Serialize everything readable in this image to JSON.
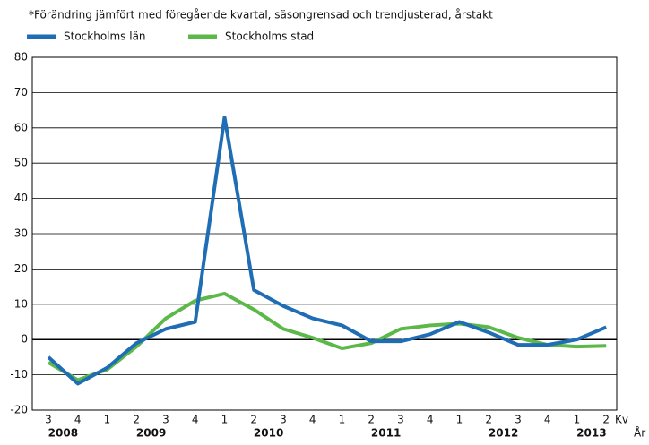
{
  "chart_data": {
    "type": "line",
    "subtitle": "*Förändring jämfört med föregående kvartal, säsongrensad och trendjusterad, årstakt",
    "categories": [
      "3",
      "4",
      "1",
      "2",
      "3",
      "4",
      "1",
      "2",
      "3",
      "4",
      "1",
      "2",
      "3",
      "4",
      "1",
      "2",
      "3",
      "4",
      "1",
      "2"
    ],
    "x_groups": [
      {
        "label": "2008",
        "start": 0,
        "end": 1
      },
      {
        "label": "2009",
        "start": 2,
        "end": 5
      },
      {
        "label": "2010",
        "start": 6,
        "end": 9
      },
      {
        "label": "2011",
        "start": 10,
        "end": 13
      },
      {
        "label": "2012",
        "start": 14,
        "end": 17
      },
      {
        "label": "2013",
        "start": 18,
        "end": 19
      }
    ],
    "x_axis_label": "Kv",
    "group_axis_label": "År",
    "series": [
      {
        "name": "Stockholms län",
        "color": "#1f6db4",
        "values": [
          -5,
          -12.5,
          -8,
          -1,
          3,
          5,
          63,
          14,
          9.5,
          6,
          4,
          -0.5,
          -0.5,
          1.5,
          5,
          2,
          -1.5,
          -1.5,
          0,
          3.5
        ]
      },
      {
        "name": "Stockholms stad",
        "color": "#5cb848",
        "values": [
          -6.5,
          -11.5,
          -8.5,
          -2,
          6,
          11,
          13,
          8.5,
          3,
          0.5,
          -2.5,
          -1,
          3,
          4,
          4.5,
          3.5,
          0.5,
          -1.5,
          -2,
          -1.8
        ]
      }
    ],
    "ylim": [
      -20,
      80
    ],
    "yticks": [
      -20,
      -10,
      0,
      10,
      20,
      30,
      40,
      50,
      60,
      70,
      80
    ],
    "grid": true,
    "legend": "top-left"
  }
}
